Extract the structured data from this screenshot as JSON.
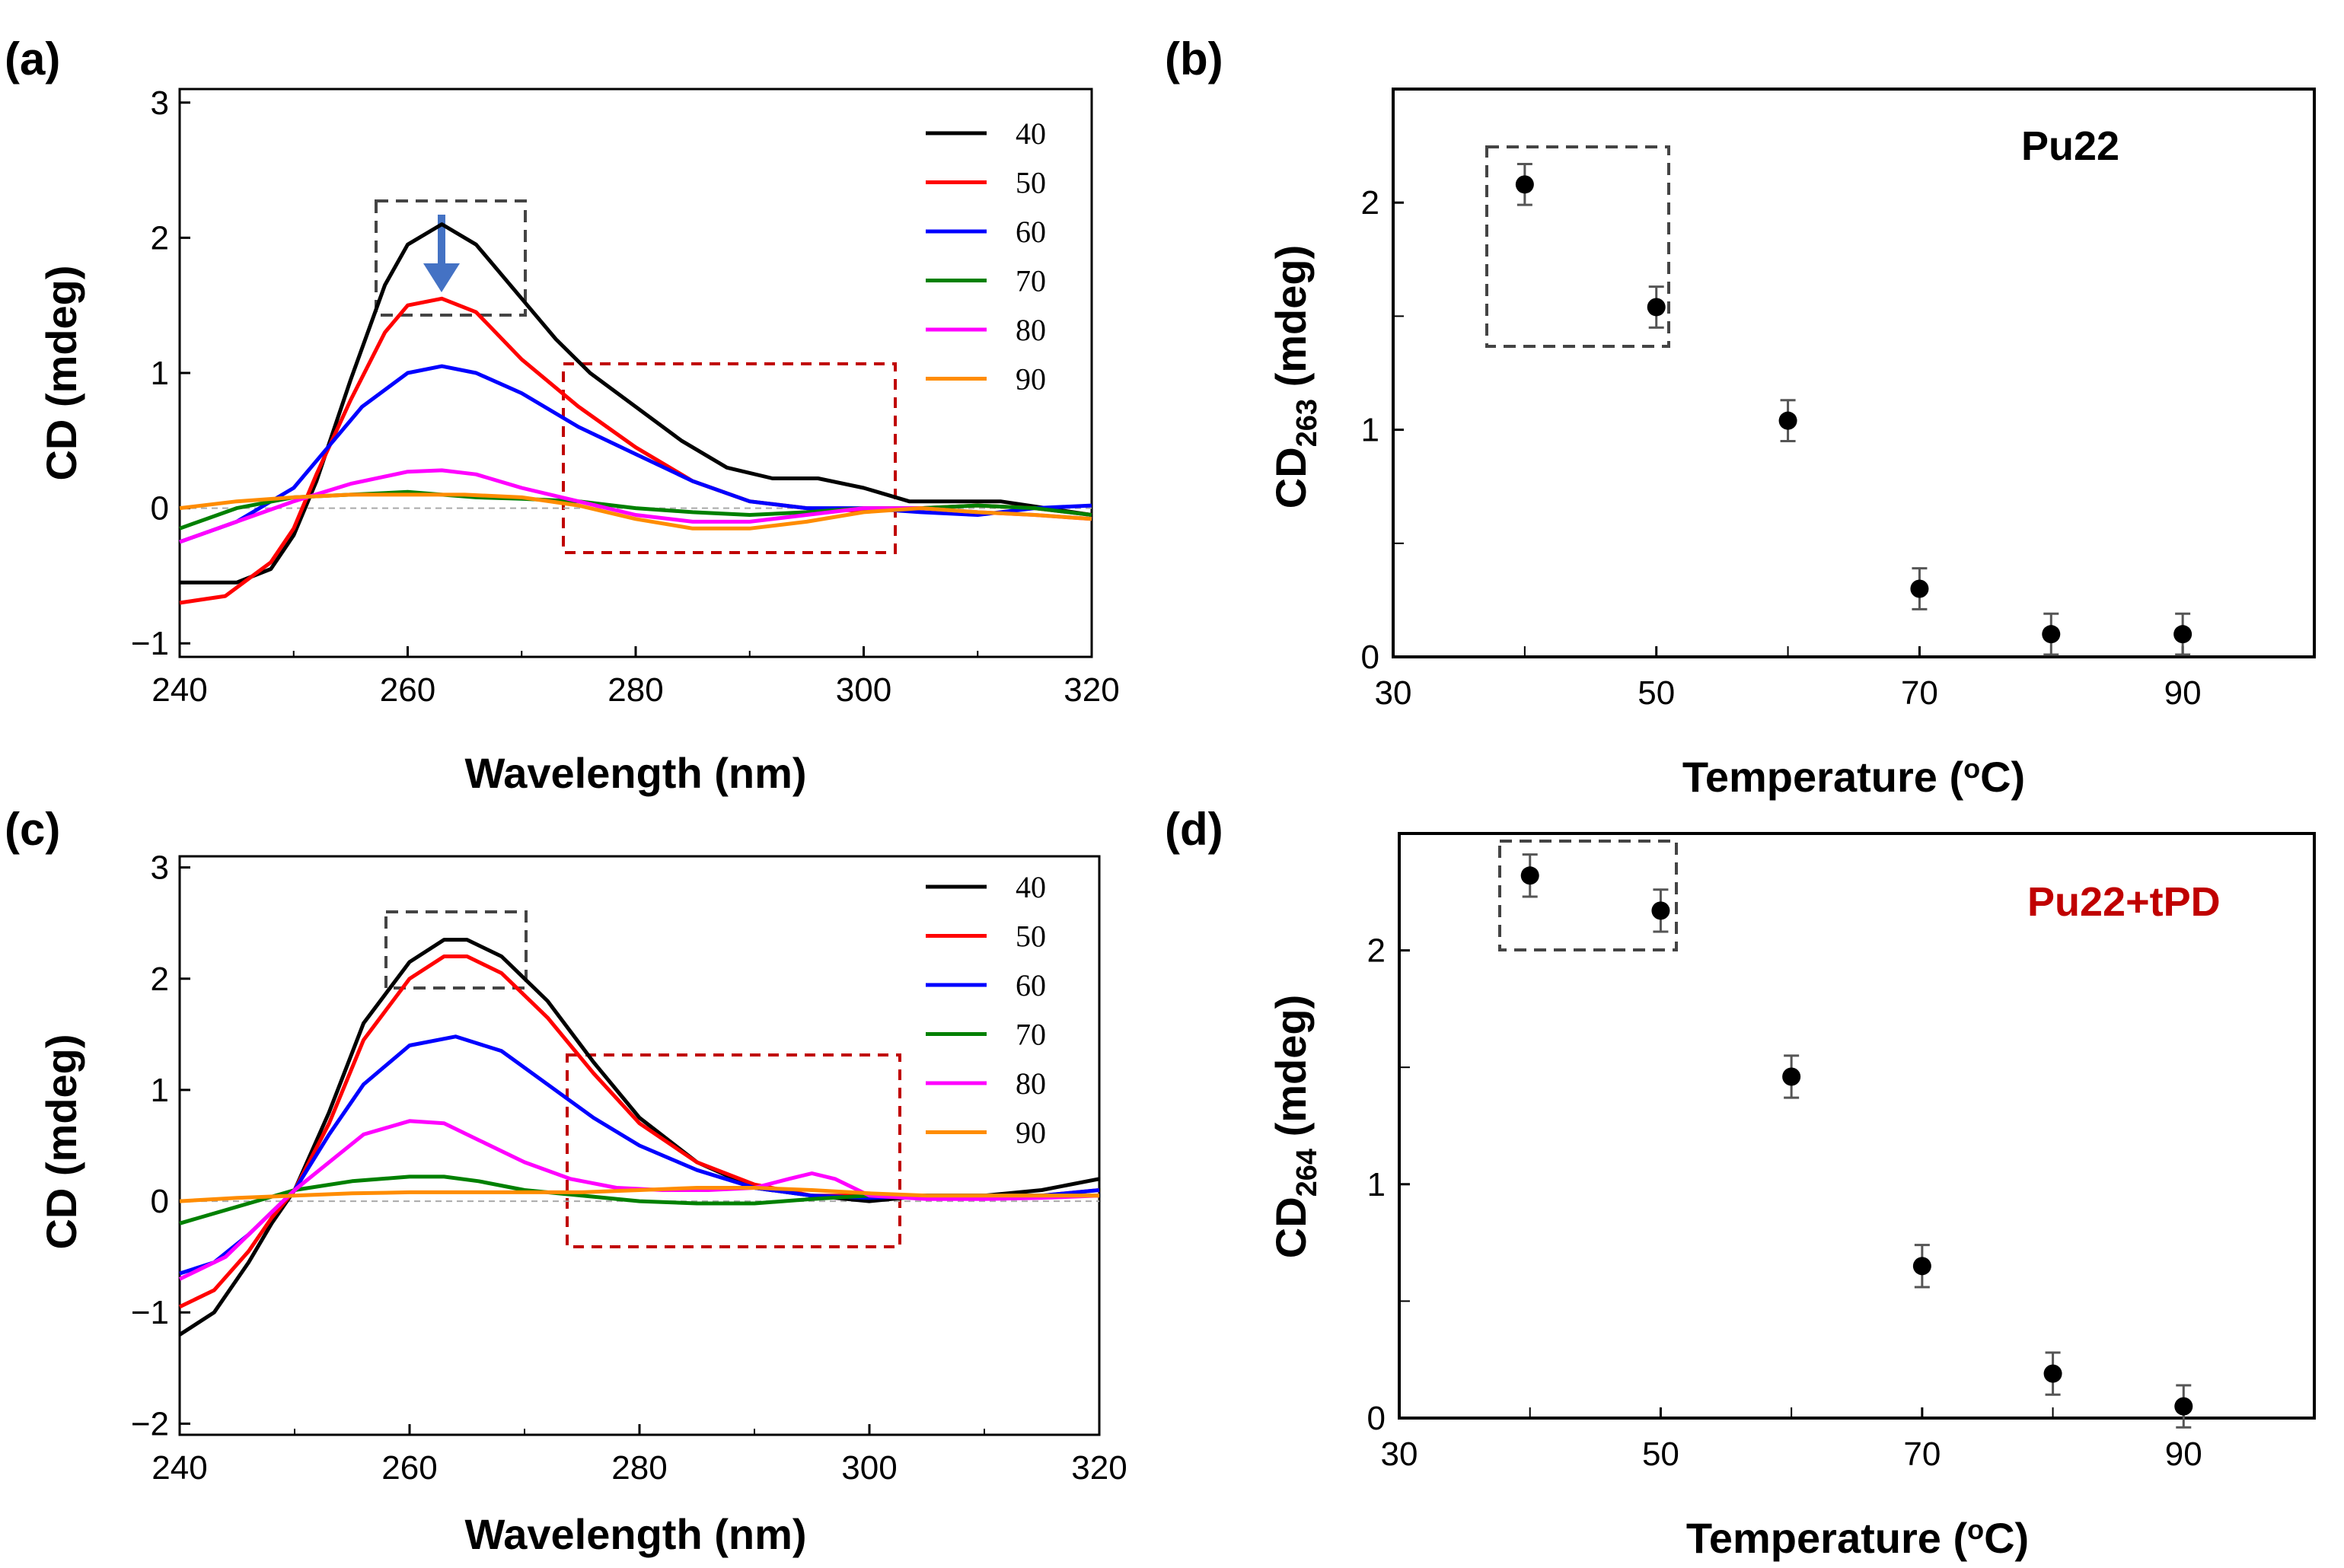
{
  "chart_data": [
    {
      "panel": "(a)",
      "type": "line",
      "xlabel": "Wavelength (nm)",
      "ylabel": "CD (mdeg)",
      "xlim": [
        240,
        320
      ],
      "ylim": [
        -1.1,
        3.1
      ],
      "xticks": [
        240,
        260,
        280,
        300,
        320
      ],
      "yticks": [
        -1,
        0,
        1,
        2,
        3
      ],
      "legend_position": "top-right",
      "series": [
        {
          "name": "40",
          "color": "#000000",
          "x": [
            240,
            245,
            248,
            250,
            252,
            255,
            258,
            260,
            263,
            266,
            270,
            273,
            276,
            280,
            284,
            288,
            292,
            296,
            300,
            304,
            308,
            312,
            316,
            320
          ],
          "y": [
            -0.55,
            -0.55,
            -0.45,
            -0.2,
            0.2,
            0.95,
            1.65,
            1.95,
            2.1,
            1.95,
            1.55,
            1.25,
            1.0,
            0.75,
            0.5,
            0.3,
            0.22,
            0.22,
            0.15,
            0.05,
            0.05,
            0.05,
            0.0,
            -0.05
          ]
        },
        {
          "name": "50",
          "color": "#ff0000",
          "x": [
            240,
            244,
            248,
            250,
            252,
            255,
            258,
            260,
            263,
            266,
            270,
            275,
            280,
            285,
            290,
            295,
            300,
            305,
            310,
            315,
            320
          ],
          "y": [
            -0.7,
            -0.65,
            -0.4,
            -0.15,
            0.25,
            0.8,
            1.3,
            1.5,
            1.55,
            1.45,
            1.1,
            0.75,
            0.45,
            0.2,
            0.05,
            0.0,
            -0.02,
            0.0,
            0.02,
            0.0,
            -0.05
          ]
        },
        {
          "name": "60",
          "color": "#0000ff",
          "x": [
            240,
            245,
            250,
            253,
            256,
            260,
            263,
            266,
            270,
            275,
            280,
            285,
            290,
            295,
            300,
            305,
            310,
            315,
            320
          ],
          "y": [
            -0.25,
            -0.1,
            0.15,
            0.45,
            0.75,
            1.0,
            1.05,
            1.0,
            0.85,
            0.6,
            0.4,
            0.2,
            0.05,
            0.0,
            0.0,
            -0.03,
            -0.05,
            0.0,
            0.02
          ]
        },
        {
          "name": "70",
          "color": "#008000",
          "x": [
            240,
            245,
            250,
            255,
            260,
            263,
            266,
            270,
            275,
            280,
            285,
            290,
            295,
            300,
            305,
            310,
            315,
            320
          ],
          "y": [
            -0.15,
            0.0,
            0.08,
            0.1,
            0.12,
            0.1,
            0.08,
            0.07,
            0.05,
            0.0,
            -0.03,
            -0.05,
            -0.03,
            0.0,
            0.0,
            0.02,
            0.0,
            -0.05
          ]
        },
        {
          "name": "80",
          "color": "#ff00ff",
          "x": [
            240,
            245,
            250,
            255,
            260,
            263,
            266,
            270,
            275,
            280,
            285,
            290,
            295,
            300,
            305,
            310,
            315,
            320
          ],
          "y": [
            -0.25,
            -0.1,
            0.05,
            0.18,
            0.27,
            0.28,
            0.25,
            0.15,
            0.05,
            -0.05,
            -0.1,
            -0.1,
            -0.05,
            0.0,
            0.0,
            -0.03,
            -0.05,
            -0.08
          ]
        },
        {
          "name": "90",
          "color": "#ff8c00",
          "x": [
            240,
            245,
            250,
            255,
            260,
            265,
            270,
            275,
            280,
            285,
            290,
            295,
            300,
            305,
            310,
            315,
            320
          ],
          "y": [
            0.0,
            0.05,
            0.08,
            0.1,
            0.1,
            0.1,
            0.08,
            0.02,
            -0.08,
            -0.15,
            -0.15,
            -0.1,
            -0.03,
            0.0,
            -0.03,
            -0.05,
            -0.08
          ]
        }
      ]
    },
    {
      "panel": "(b)",
      "type": "scatter",
      "xlabel": "Temperature (°C)",
      "ylabel": "CD263 (mdeg)",
      "xlim": [
        30,
        100
      ],
      "ylim": [
        0,
        2.5
      ],
      "xticks": [
        30,
        50,
        70,
        90
      ],
      "yticks": [
        0,
        1,
        2
      ],
      "annotation": "Pu22",
      "points": [
        {
          "x": 40,
          "y": 2.08,
          "err": 0.09
        },
        {
          "x": 50,
          "y": 1.54,
          "err": 0.09
        },
        {
          "x": 60,
          "y": 1.04,
          "err": 0.09
        },
        {
          "x": 70,
          "y": 0.3,
          "err": 0.09
        },
        {
          "x": 80,
          "y": 0.1,
          "err": 0.09
        },
        {
          "x": 90,
          "y": 0.1,
          "err": 0.09
        }
      ]
    },
    {
      "panel": "(c)",
      "type": "line",
      "xlabel": "Wavelength (nm)",
      "ylabel": "CD (mdeg)",
      "xlim": [
        240,
        320
      ],
      "ylim": [
        -2.1,
        3.1
      ],
      "xticks": [
        240,
        260,
        280,
        300,
        320
      ],
      "yticks": [
        -2,
        -1,
        0,
        1,
        2,
        3
      ],
      "legend_position": "top-right",
      "series": [
        {
          "name": "40",
          "color": "#000000",
          "x": [
            240,
            243,
            246,
            248,
            250,
            253,
            256,
            260,
            263,
            265,
            268,
            272,
            276,
            280,
            285,
            290,
            295,
            300,
            305,
            310,
            315,
            320
          ],
          "y": [
            -1.2,
            -1.0,
            -0.55,
            -0.2,
            0.1,
            0.8,
            1.6,
            2.15,
            2.35,
            2.35,
            2.2,
            1.8,
            1.25,
            0.75,
            0.35,
            0.12,
            0.05,
            0.0,
            0.05,
            0.05,
            0.1,
            0.2
          ]
        },
        {
          "name": "50",
          "color": "#ff0000",
          "x": [
            240,
            243,
            246,
            248,
            250,
            253,
            256,
            260,
            263,
            265,
            268,
            272,
            276,
            280,
            285,
            290,
            295,
            300,
            305,
            310,
            315,
            320
          ],
          "y": [
            -0.95,
            -0.8,
            -0.45,
            -0.15,
            0.1,
            0.7,
            1.45,
            2.0,
            2.2,
            2.2,
            2.05,
            1.65,
            1.15,
            0.7,
            0.35,
            0.15,
            0.05,
            0.05,
            0.05,
            0.05,
            0.05,
            0.1
          ]
        },
        {
          "name": "60",
          "color": "#0000ff",
          "x": [
            240,
            243,
            246,
            248,
            250,
            253,
            256,
            260,
            264,
            268,
            272,
            276,
            280,
            285,
            290,
            295,
            300,
            305,
            310,
            315,
            320
          ],
          "y": [
            -0.65,
            -0.55,
            -0.3,
            -0.1,
            0.1,
            0.6,
            1.05,
            1.4,
            1.48,
            1.35,
            1.05,
            0.75,
            0.5,
            0.28,
            0.12,
            0.05,
            0.03,
            0.05,
            0.05,
            0.05,
            0.1
          ]
        },
        {
          "name": "70",
          "color": "#008000",
          "x": [
            240,
            245,
            250,
            255,
            260,
            263,
            266,
            270,
            275,
            280,
            285,
            290,
            295,
            300,
            305,
            310,
            315,
            320
          ],
          "y": [
            -0.2,
            -0.05,
            0.1,
            0.18,
            0.22,
            0.22,
            0.18,
            0.1,
            0.05,
            0.0,
            -0.02,
            -0.02,
            0.02,
            0.05,
            0.05,
            0.05,
            0.05,
            0.05
          ]
        },
        {
          "name": "80",
          "color": "#ff00ff",
          "x": [
            240,
            244,
            248,
            250,
            253,
            256,
            260,
            263,
            266,
            270,
            274,
            278,
            282,
            286,
            290,
            293,
            295,
            297,
            300,
            305,
            310,
            315,
            320
          ],
          "y": [
            -0.7,
            -0.5,
            -0.1,
            0.1,
            0.35,
            0.6,
            0.72,
            0.7,
            0.55,
            0.35,
            0.2,
            0.12,
            0.1,
            0.1,
            0.12,
            0.2,
            0.25,
            0.2,
            0.05,
            0.02,
            0.02,
            0.03,
            0.05
          ]
        },
        {
          "name": "90",
          "color": "#ff8c00",
          "x": [
            240,
            245,
            250,
            255,
            260,
            265,
            270,
            275,
            280,
            285,
            290,
            295,
            300,
            305,
            310,
            315,
            320
          ],
          "y": [
            0.0,
            0.03,
            0.05,
            0.07,
            0.08,
            0.08,
            0.08,
            0.08,
            0.1,
            0.12,
            0.12,
            0.1,
            0.07,
            0.05,
            0.05,
            0.05,
            0.05
          ]
        }
      ]
    },
    {
      "panel": "(d)",
      "type": "scatter",
      "xlabel": "Temperature (°C)",
      "ylabel": "CD264 (mdeg)",
      "xlim": [
        30,
        100
      ],
      "ylim": [
        0,
        2.5
      ],
      "xticks": [
        30,
        50,
        70,
        90
      ],
      "yticks": [
        0,
        1,
        2
      ],
      "annotation": "Pu22+tPD",
      "points": [
        {
          "x": 40,
          "y": 2.32,
          "err": 0.09
        },
        {
          "x": 50,
          "y": 2.17,
          "err": 0.09
        },
        {
          "x": 60,
          "y": 1.46,
          "err": 0.09
        },
        {
          "x": 70,
          "y": 0.65,
          "err": 0.09
        },
        {
          "x": 80,
          "y": 0.19,
          "err": 0.09
        },
        {
          "x": 90,
          "y": 0.05,
          "err": 0.09
        }
      ]
    }
  ],
  "labels": {
    "a": "(a)",
    "b": "(b)",
    "c": "(c)",
    "d": "(d)",
    "wavelength": "Wavelength (nm)",
    "cd": "CD (mdeg)",
    "temperature_pre": "Temperature (",
    "temperature_sup": "o",
    "temperature_post": "C)",
    "cd_b_main": "CD",
    "cd_b_sub": "263",
    "cd_b_unit": " (mdeg)",
    "cd_d_main": "CD",
    "cd_d_sub": "264",
    "cd_d_unit": " (mdeg)",
    "pu22": "Pu22",
    "pu22tpd": "Pu22+tPD"
  },
  "colors": {
    "pu22tpd": "#c00000",
    "arrow": "#4472c4",
    "black_box": "#444444",
    "red_box": "#c00000"
  }
}
